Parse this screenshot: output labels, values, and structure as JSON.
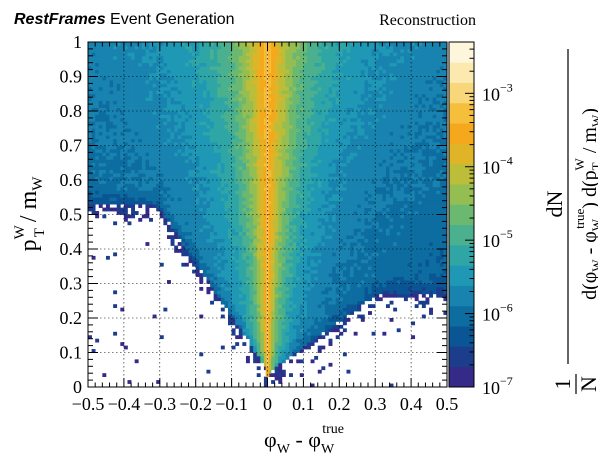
{
  "header": {
    "brand": "RestFrames",
    "brand_suffix": " Event Generation",
    "right_label": "Reconstruction"
  },
  "chart_data": {
    "type": "heatmap",
    "title": "Reconstruction",
    "x": {
      "var": "φ",
      "sub": "W",
      "minus": " - ",
      "var2": "φ",
      "sub2": "W",
      "sup2": "true",
      "range": [
        -0.5,
        0.5
      ],
      "ticks": [
        -0.5,
        -0.4,
        -0.3,
        -0.2,
        -0.1,
        0,
        0.1,
        0.2,
        0.3,
        0.4,
        0.5
      ],
      "tick_labels": [
        "−0.5",
        "−0.4",
        "−0.3",
        "−0.2",
        "−0.1",
        "0",
        "0.1",
        "0.2",
        "0.3",
        "0.4",
        "0.5"
      ]
    },
    "y": {
      "var": "p",
      "sup": "W",
      "sub": "T",
      "tail": " / m",
      "tail_sub": "W",
      "range": [
        0,
        1
      ],
      "ticks": [
        0,
        0.1,
        0.2,
        0.3,
        0.4,
        0.5,
        0.6,
        0.7,
        0.8,
        0.9,
        1
      ],
      "tick_labels": [
        "0",
        "0.1",
        "0.2",
        "0.3",
        "0.4",
        "0.5",
        "0.6",
        "0.7",
        "0.8",
        "0.9",
        "1"
      ]
    },
    "z": {
      "scale": "log",
      "range": [
        1e-07,
        0.005
      ],
      "label_parts": {
        "one": "1",
        "N": "N",
        "dN": "dN",
        "d": "d(",
        "phi": "φ",
        "W": "W",
        "minus": " - ",
        "true": "true",
        "close": ") d(",
        "p": "p",
        "T": "T",
        "slash": " / m",
        "end": ")"
      },
      "ticks": [
        {
          "base": "10",
          "exp": "−7",
          "value": 1e-07
        },
        {
          "base": "10",
          "exp": "−6",
          "value": 1e-06
        },
        {
          "base": "10",
          "exp": "−5",
          "value": 1e-05
        },
        {
          "base": "10",
          "exp": "−4",
          "value": 0.0001
        },
        {
          "base": "10",
          "exp": "−3",
          "value": 0.001
        }
      ],
      "palette": [
        "#352a87",
        "#1c3d8c",
        "#0a5594",
        "#0d6da0",
        "#1983b0",
        "#1e98b5",
        "#2fa6a5",
        "#4bb08e",
        "#6bb871",
        "#94bd52",
        "#bcbd38",
        "#e0b427",
        "#f5a81b",
        "#f6bf3b",
        "#f8d77a",
        "#fbe9b0",
        "#fdf6dd"
      ]
    },
    "grid": true,
    "description_peak": "Density peaks at φ_W − φ_W^true = 0 and falls off away from it; an empty region opens at low p_T^W/m_W away from zero."
  }
}
